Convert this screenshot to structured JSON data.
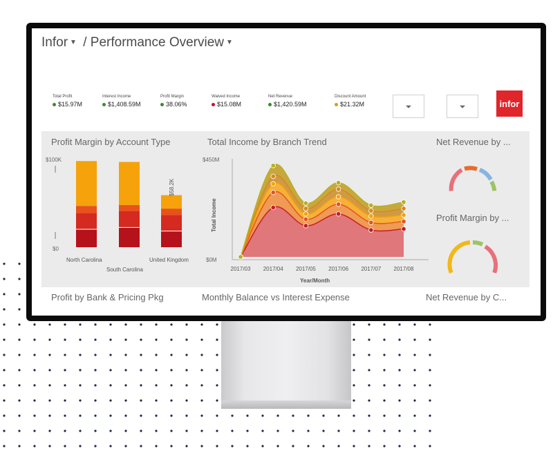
{
  "breadcrumb": {
    "root": "Infor",
    "separator": "/",
    "page": "Performance Overview"
  },
  "kpis": [
    {
      "label": "Total Profit",
      "value": "$15.97M",
      "color": "#3a8a2e"
    },
    {
      "label": "Interest Income",
      "value": "$1,408.59M",
      "color": "#3a8a2e"
    },
    {
      "label": "Profit Margin",
      "value": "38.06%",
      "color": "#3a8a2e"
    },
    {
      "label": "Waived Income",
      "value": "$15.08M",
      "color": "#c8102e"
    },
    {
      "label": "Net Revenue",
      "value": "$1,420.59M",
      "color": "#3a8a2e"
    },
    {
      "label": "Discount Amount",
      "value": "$21.32M",
      "color": "#d4a017"
    }
  ],
  "logo": "infor",
  "colors": {
    "brand": "#e0252b",
    "dark_red": "#b5121b",
    "red": "#d42a20",
    "orange": "#e8521b",
    "yellow": "#f5a20b",
    "olive": "#b5b024"
  },
  "panels": {
    "profit_margin": {
      "title": "Profit Margin by Account Type",
      "ytop": "$100K",
      "ybottom": "$0",
      "bar_label": "$58.2K"
    },
    "income_trend": {
      "title": "Total Income by Branch Trend",
      "ytop": "$450M",
      "ybottom": "$0M",
      "ylabel": "Total Income",
      "xlabel": "Year/Month"
    },
    "net_revenue": {
      "title": "Net Revenue by ..."
    },
    "profit_margin_gauge": {
      "title": "Profit Margin by ..."
    }
  },
  "lower_titles": [
    "Profit by Bank & Pricing Pkg",
    "Monthly Balance vs Interest Expense",
    "Net Revenue by C..."
  ],
  "chart_data": [
    {
      "type": "bar",
      "title": "Profit Margin by Account Type",
      "categories": [
        "North Carolina",
        "South Carolina",
        "United Kingdom"
      ],
      "ylim": [
        0,
        100000
      ],
      "series": [
        {
          "values": [
            20000,
            22000,
            18000
          ]
        },
        {
          "values": [
            18000,
            18000,
            18000
          ]
        },
        {
          "values": [
            8000,
            7000,
            7000
          ]
        },
        {
          "values": [
            50000,
            48000,
            15000
          ]
        }
      ],
      "data_labels": [
        "$58.2K"
      ]
    },
    {
      "type": "area",
      "title": "Total Income by Branch Trend",
      "x": [
        "2017/03",
        "2017/04",
        "2017/05",
        "2017/06",
        "2017/07",
        "2017/08"
      ],
      "ylabel": "Total Income",
      "xlabel": "Year/Month",
      "ylim": [
        0,
        450
      ],
      "series": [
        {
          "values": [
            0,
            230,
            145,
            200,
            125,
            130
          ]
        },
        {
          "values": [
            0,
            300,
            175,
            245,
            160,
            165
          ]
        },
        {
          "values": [
            0,
            340,
            200,
            280,
            190,
            195
          ]
        },
        {
          "values": [
            0,
            375,
            225,
            315,
            215,
            225
          ]
        },
        {
          "values": [
            0,
            425,
            250,
            345,
            240,
            255
          ]
        }
      ]
    }
  ]
}
